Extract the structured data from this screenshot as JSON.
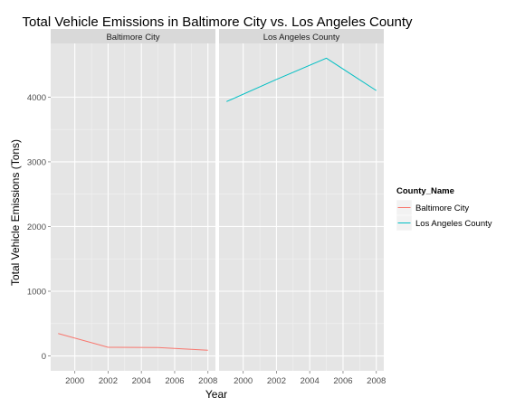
{
  "chart_data": {
    "type": "line",
    "title": "Total Vehicle Emissions in Baltimore City vs. Los Angeles County",
    "xlabel": "Year",
    "ylabel": "Total Vehicle Emissions (Tons)",
    "xlim": [
      1998.55,
      2008.45
    ],
    "ylim": [
      -230,
      4830
    ],
    "x_ticks": [
      2000,
      2002,
      2004,
      2006,
      2008
    ],
    "y_ticks": [
      0,
      1000,
      2000,
      3000,
      4000
    ],
    "grid": true,
    "legend": {
      "title": "County_Name",
      "position": "right",
      "entries": [
        "Baltimore City",
        "Los Angeles County"
      ]
    },
    "facets": [
      {
        "label": "Baltimore City",
        "series": [
          {
            "name": "Baltimore City",
            "color": "#F8766D",
            "x": [
              1999,
              2002,
              2005,
              2008
            ],
            "y": [
              346.8,
              134.3,
              130.4,
              88.3
            ]
          }
        ]
      },
      {
        "label": "Los Angeles County",
        "series": [
          {
            "name": "Los Angeles County",
            "color": "#00BFC4",
            "x": [
              1999,
              2002,
              2005,
              2008
            ],
            "y": [
              3931.1,
              4274.0,
              4601.4,
              4101.3
            ]
          }
        ]
      }
    ]
  }
}
